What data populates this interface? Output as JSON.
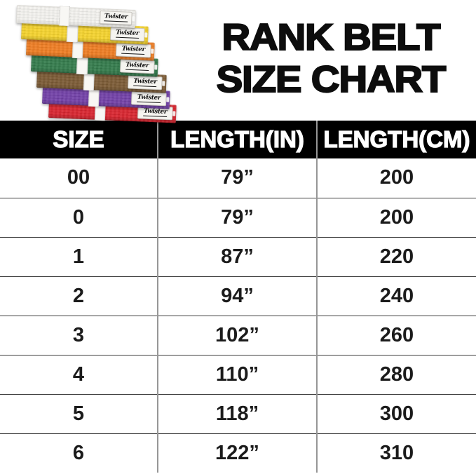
{
  "page": {
    "background": "#ffffff"
  },
  "title": {
    "line1": "RANK BELT",
    "line2": "SIZE CHART",
    "color": "#0d0d0d"
  },
  "belt_stack": {
    "brand": "Twister",
    "belts": [
      {
        "rank": "white",
        "color": "#f3f2ee"
      },
      {
        "rank": "yellow",
        "color": "#f5d32c"
      },
      {
        "rank": "orange",
        "color": "#ef7d22"
      },
      {
        "rank": "green",
        "color": "#337b4b"
      },
      {
        "rank": "brown",
        "color": "#7b5a34"
      },
      {
        "rank": "purple",
        "color": "#7240a8"
      },
      {
        "rank": "red",
        "color": "#d9242e"
      }
    ]
  },
  "table": {
    "header_bg": "#000000",
    "header_text_color": "#ffffff",
    "headers": [
      "SIZE",
      "LENGTH(IN)",
      "LENGTH(CM)"
    ],
    "rows": [
      [
        "00",
        "79”",
        "200"
      ],
      [
        "0",
        "79”",
        "200"
      ],
      [
        "1",
        "87”",
        "220"
      ],
      [
        "2",
        "94”",
        "240"
      ],
      [
        "3",
        "102”",
        "260"
      ],
      [
        "4",
        "110”",
        "280"
      ],
      [
        "5",
        "118”",
        "300"
      ],
      [
        "6",
        "122”",
        "310"
      ]
    ]
  },
  "chart_data": {
    "type": "table",
    "title": "RANK BELT SIZE CHART",
    "columns": [
      "SIZE",
      "LENGTH(IN)",
      "LENGTH(CM)"
    ],
    "rows": [
      {
        "size": "00",
        "length_in": 79,
        "length_cm": 200
      },
      {
        "size": "0",
        "length_in": 79,
        "length_cm": 200
      },
      {
        "size": "1",
        "length_in": 87,
        "length_cm": 220
      },
      {
        "size": "2",
        "length_in": 94,
        "length_cm": 240
      },
      {
        "size": "3",
        "length_in": 102,
        "length_cm": 260
      },
      {
        "size": "4",
        "length_in": 110,
        "length_cm": 280
      },
      {
        "size": "5",
        "length_in": 118,
        "length_cm": 300
      },
      {
        "size": "6",
        "length_in": 122,
        "length_cm": 310
      }
    ]
  }
}
